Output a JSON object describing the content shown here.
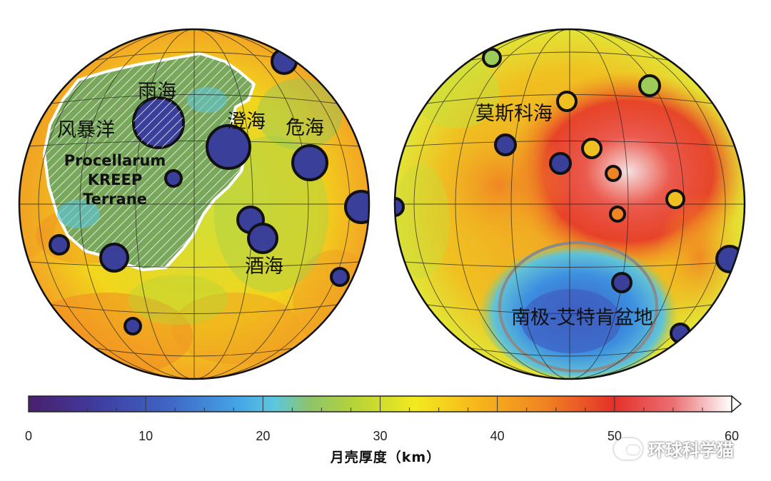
{
  "colors": {
    "globe_base": "#f3d21a",
    "kreep_green": "#79a85c",
    "kreep_border": "#ffffff",
    "basin_fill": "#3a3f9a",
    "basin_ring": "#111111",
    "spa_blue": "#3d8fe0",
    "spa_ring": "#888888",
    "hot_red": "#e5302a",
    "hot_white": "#f8e4e4"
  },
  "near_side": {
    "labels": {
      "imbrium": "雨海",
      "procellarum_cn": "风暴洋",
      "serenitatis": "澄海",
      "crisium": "危海",
      "nectaris": "酒海"
    },
    "terrane": {
      "line1": "Procellarum",
      "line2": "KREEP",
      "line3": "Terrane"
    }
  },
  "far_side": {
    "labels": {
      "moscoviense": "莫斯科海",
      "spa_basin": "南极-艾特肯盆地"
    }
  },
  "colorbar": {
    "title": "月壳厚度（km）",
    "min": 0,
    "max": 60,
    "ticks": [
      "0",
      "10",
      "20",
      "30",
      "40",
      "50",
      "60"
    ],
    "stops": [
      {
        "v": 0,
        "color": "#4a1f6e"
      },
      {
        "v": 6,
        "color": "#3f3da0"
      },
      {
        "v": 12,
        "color": "#3f66c6"
      },
      {
        "v": 18,
        "color": "#45a6e6"
      },
      {
        "v": 21,
        "color": "#5cc7de"
      },
      {
        "v": 24,
        "color": "#8ec46a"
      },
      {
        "v": 28,
        "color": "#b9d436"
      },
      {
        "v": 33,
        "color": "#f3ea1f"
      },
      {
        "v": 38,
        "color": "#f7b91c"
      },
      {
        "v": 44,
        "color": "#f08422"
      },
      {
        "v": 50,
        "color": "#e5302a"
      },
      {
        "v": 55,
        "color": "#eb6f73"
      },
      {
        "v": 60,
        "color": "#ffffff"
      }
    ]
  },
  "watermark": {
    "text": "环球科学猫"
  }
}
